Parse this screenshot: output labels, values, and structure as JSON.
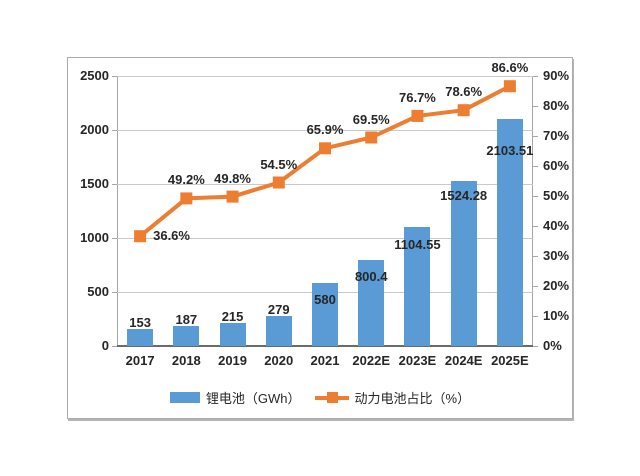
{
  "chart_data": {
    "type": "bar",
    "subtype": "bar-line-combo",
    "categories": [
      "2017",
      "2018",
      "2019",
      "2020",
      "2021",
      "2022E",
      "2023E",
      "2024E",
      "2025E"
    ],
    "series": [
      {
        "name": "锂电池（GWh）",
        "type": "bar",
        "axis": "left",
        "color": "#5B9BD5",
        "values": [
          153,
          187,
          215,
          279,
          580,
          800.4,
          1104.55,
          1524.28,
          2103.51
        ],
        "labels": [
          "153",
          "187",
          "215",
          "279",
          "580",
          "800.4",
          "1104.55",
          "1524.28",
          "2103.51"
        ]
      },
      {
        "name": "动力电池占比（%）",
        "type": "line",
        "axis": "right",
        "color": "#ED7D31",
        "values": [
          36.6,
          49.2,
          49.8,
          54.5,
          65.9,
          69.5,
          76.7,
          78.6,
          86.6
        ],
        "labels": [
          "36.6%",
          "49.2%",
          "49.8%",
          "54.5%",
          "65.9%",
          "69.5%",
          "76.7%",
          "78.6%",
          "86.6%"
        ]
      }
    ],
    "left_axis": {
      "min": 0,
      "max": 2500,
      "step": 500,
      "ticks": [
        "0",
        "500",
        "1000",
        "1500",
        "2000",
        "2500"
      ]
    },
    "right_axis": {
      "min": 0,
      "max": 90,
      "step": 10,
      "ticks": [
        "0%",
        "10%",
        "20%",
        "30%",
        "40%",
        "50%",
        "60%",
        "70%",
        "80%",
        "90%"
      ]
    },
    "grid": true,
    "legend_position": "bottom",
    "title": "",
    "xlabel": "",
    "ylabel": ""
  },
  "colors": {
    "bar": "#5B9BD5",
    "line": "#ED7D31",
    "grid": "#c9c9c9",
    "axis": "#a6a6a6",
    "axis_bottom": "#6b6b6b",
    "text": "#262626",
    "frame_border": "#ababab"
  }
}
